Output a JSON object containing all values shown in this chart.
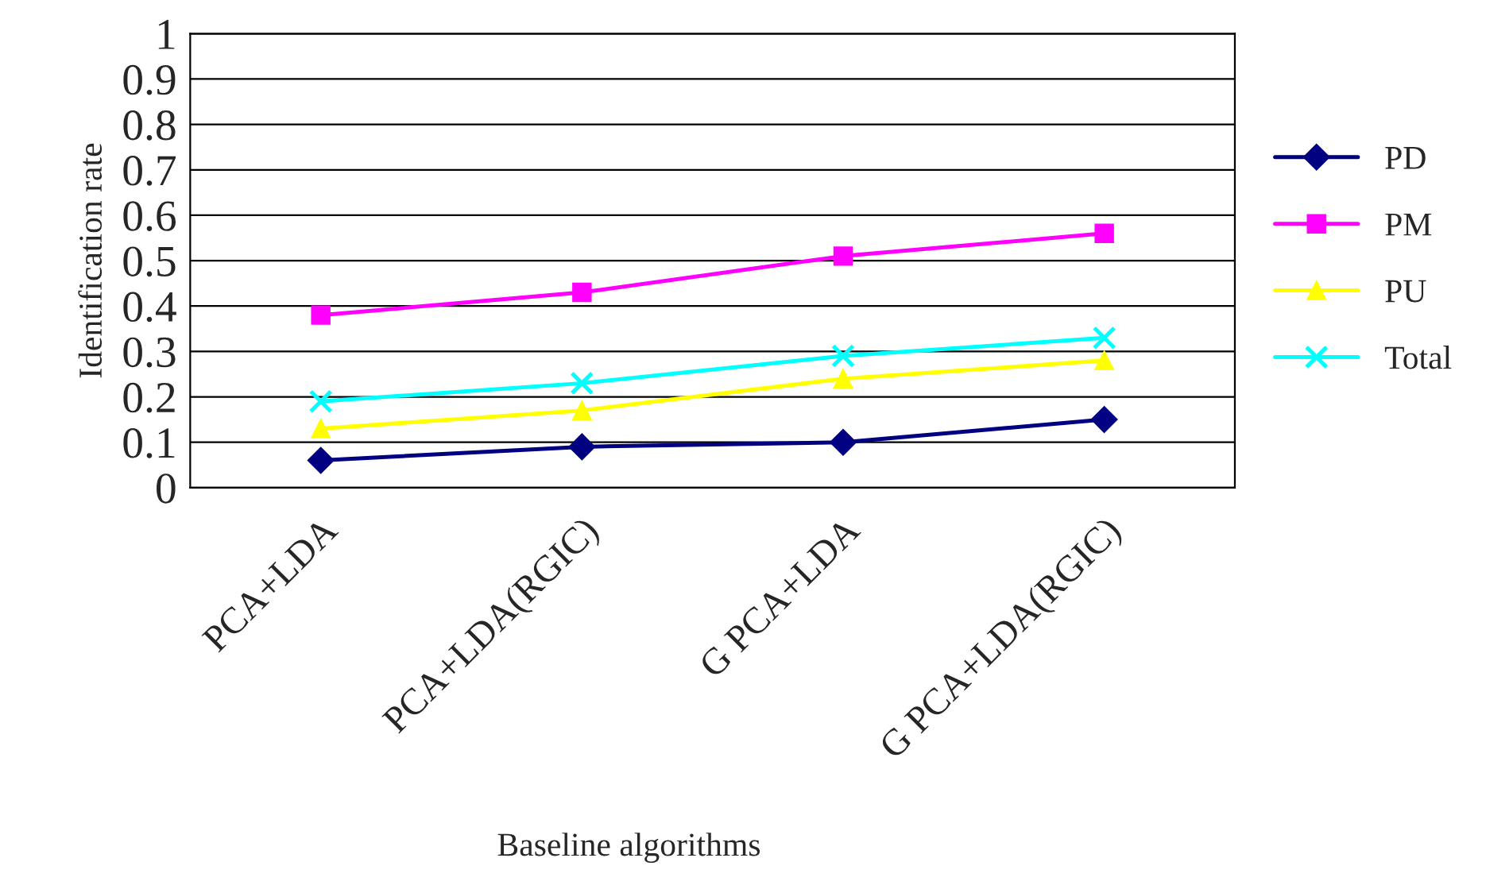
{
  "chart_data": {
    "type": "line",
    "xlabel": "Baseline algorithms",
    "ylabel": "Identification rate",
    "categories": [
      "PCA+LDA",
      "PCA+LDA(RGIC)",
      "G PCA+LDA",
      "G PCA+LDA(RGIC)"
    ],
    "series": [
      {
        "name": "PD",
        "color": "#000080",
        "marker": "diamond",
        "values": [
          0.06,
          0.09,
          0.1,
          0.15
        ]
      },
      {
        "name": "PM",
        "color": "#ff00ff",
        "marker": "square",
        "values": [
          0.38,
          0.43,
          0.51,
          0.56
        ]
      },
      {
        "name": "PU",
        "color": "#ffff00",
        "marker": "triangle",
        "values": [
          0.13,
          0.17,
          0.24,
          0.28
        ]
      },
      {
        "name": "Total",
        "color": "#00ffff",
        "marker": "cross",
        "values": [
          0.19,
          0.23,
          0.29,
          0.33
        ]
      }
    ],
    "ylim": [
      0,
      1
    ],
    "yticks": [
      0,
      0.1,
      0.2,
      0.3,
      0.4,
      0.5,
      0.6,
      0.7,
      0.8,
      0.9,
      1
    ],
    "grid": "y",
    "legend": "right"
  }
}
